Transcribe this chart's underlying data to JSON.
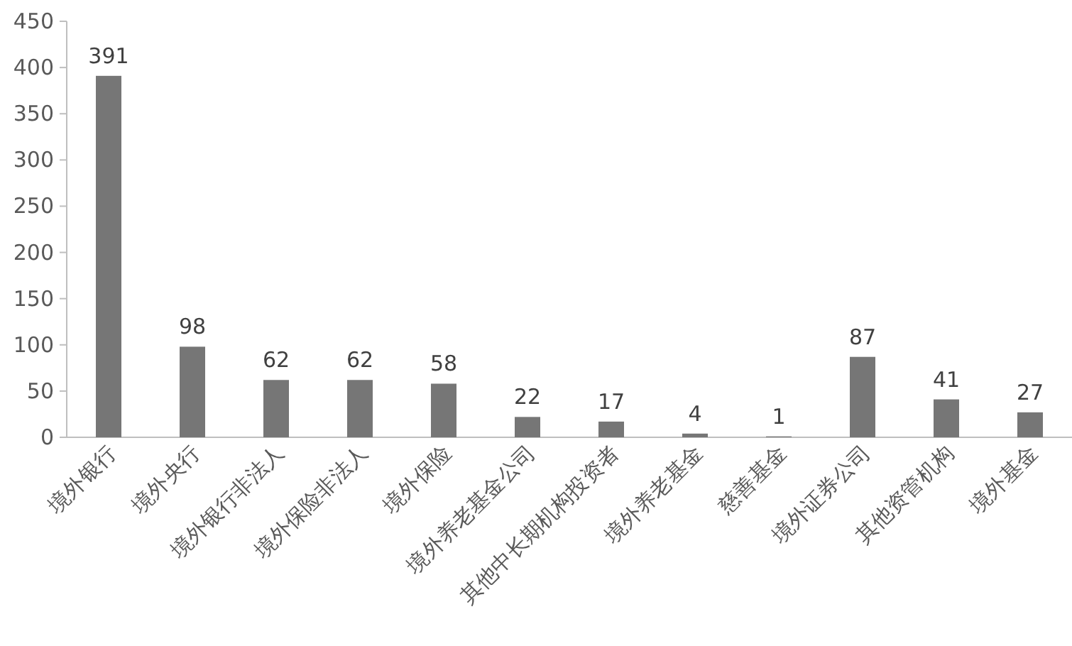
{
  "chart_data": {
    "type": "bar",
    "categories": [
      "境外银行",
      "境外央行",
      "境外银行非法人",
      "境外保险非法人",
      "境外保险",
      "境外养老基金公司",
      "其他中长期机构投资者",
      "境外养老基金",
      "慈善基金",
      "境外证券公司",
      "其他资管机构",
      "境外基金"
    ],
    "values": [
      391,
      98,
      62,
      62,
      58,
      22,
      17,
      4,
      1,
      87,
      41,
      27
    ],
    "color": "#767676",
    "ylim": [
      0,
      450
    ],
    "yticks": [
      0,
      50,
      100,
      150,
      200,
      250,
      300,
      350,
      400,
      450
    ],
    "data_labels": true
  }
}
